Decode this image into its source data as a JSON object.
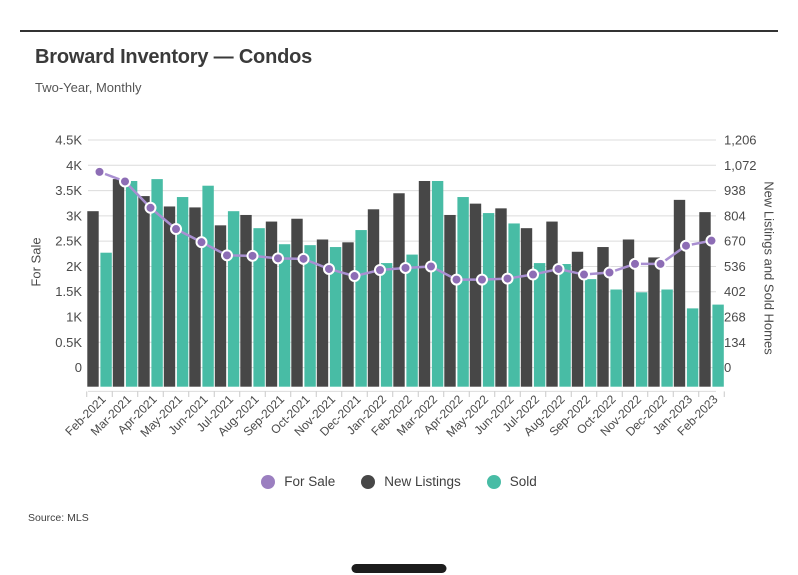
{
  "header": {
    "title": "Broward Inventory — Condos",
    "subtitle": "Two-Year, Monthly"
  },
  "footer": {
    "source": "Source: MLS"
  },
  "chart_data": {
    "type": "combo-bar-line",
    "grid": true,
    "categories": [
      "Feb-2021",
      "Mar-2021",
      "Apr-2021",
      "May-2021",
      "Jun-2021",
      "Jul-2021",
      "Aug-2021",
      "Sep-2021",
      "Oct-2021",
      "Nov-2021",
      "Dec-2021",
      "Jan-2022",
      "Feb-2022",
      "Mar-2022",
      "Apr-2022",
      "May-2022",
      "Jun-2022",
      "Jul-2022",
      "Aug-2022",
      "Sep-2022",
      "Oct-2022",
      "Nov-2022",
      "Dec-2022",
      "Jan-2023",
      "Feb-2023"
    ],
    "series": [
      {
        "name": "For Sale",
        "type": "line",
        "axis": "left",
        "color": "#8d6db5",
        "line_color": "#a98fd1",
        "values": [
          3870,
          3680,
          3160,
          2740,
          2480,
          2220,
          2210,
          2160,
          2150,
          1950,
          1810,
          1930,
          1970,
          2000,
          1740,
          1740,
          1760,
          1840,
          1950,
          1840,
          1880,
          2050,
          2050,
          2410,
          2510
        ]
      },
      {
        "name": "New Listings",
        "type": "bar",
        "axis": "right",
        "color": "#474747",
        "values": [
          930,
          1100,
          1010,
          955,
          950,
          855,
          910,
          875,
          890,
          780,
          765,
          940,
          1025,
          1090,
          910,
          970,
          945,
          840,
          875,
          715,
          740,
          780,
          685,
          990,
          925
        ]
      },
      {
        "name": "Sold",
        "type": "bar",
        "axis": "right",
        "color": "#48bca5",
        "values": [
          710,
          1090,
          1100,
          1005,
          1065,
          930,
          840,
          755,
          750,
          740,
          830,
          655,
          700,
          1090,
          1005,
          920,
          865,
          655,
          650,
          570,
          515,
          500,
          515,
          415,
          435
        ]
      }
    ],
    "left_axis": {
      "title": "For Sale",
      "min": 0,
      "max": 4500,
      "ticks": [
        "4.5K",
        "4K",
        "3.5K",
        "3K",
        "2.5K",
        "2K",
        "1.5K",
        "1K",
        "0.5K",
        "0"
      ]
    },
    "right_axis": {
      "title": "New Listings and Sold Homes",
      "min": 0,
      "max": 1206,
      "ticks": [
        "1,206",
        "1,072",
        "938",
        "804",
        "670",
        "536",
        "402",
        "268",
        "134",
        "0"
      ]
    },
    "legend": [
      {
        "label": "For Sale",
        "color": "#9b7fc0"
      },
      {
        "label": "New Listings",
        "color": "#474747"
      },
      {
        "label": "Sold",
        "color": "#48bca5"
      }
    ],
    "gridline_color": "#dcdcdc"
  }
}
